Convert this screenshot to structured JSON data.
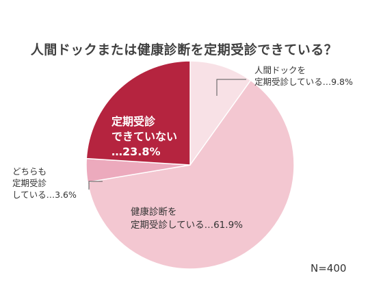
{
  "chart_data": {
    "type": "pie",
    "title": "人間ドックまたは健康診断を定期受診できている？",
    "start_angle_deg": 0,
    "direction": "clockwise",
    "slices": [
      {
        "label_lines": [
          "人間ドックを",
          "定期受診している…9.8%"
        ],
        "value": 9.8,
        "color": "#f8e1e6"
      },
      {
        "label_lines": [
          "健康診断を",
          "定期受診している…61.9%"
        ],
        "value": 61.9,
        "color": "#f3c7d1"
      },
      {
        "label_lines": [
          "どちらも",
          "定期受診",
          "している…3.6%"
        ],
        "value": 3.6,
        "color": "#ecaabd"
      },
      {
        "label_lines": [
          "定期受診",
          "できていない",
          "…23.8%"
        ],
        "value": 23.8,
        "color": "#b5243f"
      }
    ],
    "annotation": "N=400"
  }
}
